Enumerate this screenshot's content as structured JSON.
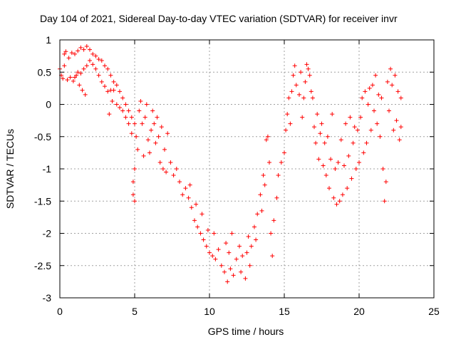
{
  "chart_data": {
    "type": "scatter",
    "title": "Day 104 of 2021, Sidereal Day-to-day VTEC variation (SDTVAR) for receiver invr",
    "xlabel": "GPS time / hours",
    "ylabel": "SDTVAR / TECUs",
    "xlim": [
      0,
      25
    ],
    "ylim": [
      -3,
      1
    ],
    "xticks": [
      "0",
      "5",
      "10",
      "15",
      "20",
      "25"
    ],
    "yticks": [
      "1",
      "0.5",
      "0",
      "-0.5",
      "-1",
      "-1.5",
      "-2",
      "-2.5",
      "-3"
    ],
    "xtick_values": [
      0,
      5,
      10,
      15,
      20,
      25
    ],
    "ytick_values": [
      1,
      0.5,
      0,
      -0.5,
      -1,
      -1.5,
      -2,
      -2.5,
      -3
    ],
    "grid": true,
    "marker": "+",
    "color": "#ff0000",
    "series": [
      {
        "name": "SDTVAR",
        "points": [
          [
            0.0,
            0.55
          ],
          [
            0.1,
            0.45
          ],
          [
            0.2,
            0.4
          ],
          [
            0.3,
            0.6
          ],
          [
            0.3,
            0.78
          ],
          [
            0.4,
            0.82
          ],
          [
            0.5,
            0.38
          ],
          [
            0.6,
            0.72
          ],
          [
            0.7,
            0.42
          ],
          [
            0.8,
            0.8
          ],
          [
            0.9,
            0.36
          ],
          [
            1.0,
            0.78
          ],
          [
            1.0,
            0.42
          ],
          [
            1.1,
            0.45
          ],
          [
            1.2,
            0.83
          ],
          [
            1.2,
            0.5
          ],
          [
            1.3,
            0.3
          ],
          [
            1.4,
            0.88
          ],
          [
            1.4,
            0.48
          ],
          [
            1.5,
            0.22
          ],
          [
            1.6,
            0.85
          ],
          [
            1.6,
            0.55
          ],
          [
            1.7,
            0.15
          ],
          [
            1.8,
            0.9
          ],
          [
            1.8,
            0.6
          ],
          [
            2.0,
            0.85
          ],
          [
            2.0,
            0.68
          ],
          [
            2.2,
            0.78
          ],
          [
            2.2,
            0.62
          ],
          [
            2.4,
            0.75
          ],
          [
            2.4,
            0.55
          ],
          [
            2.6,
            0.7
          ],
          [
            2.6,
            0.45
          ],
          [
            2.8,
            0.68
          ],
          [
            2.8,
            0.35
          ],
          [
            3.0,
            0.6
          ],
          [
            3.0,
            0.28
          ],
          [
            3.2,
            0.55
          ],
          [
            3.2,
            0.2
          ],
          [
            3.4,
            0.45
          ],
          [
            3.4,
            0.22
          ],
          [
            3.3,
            -0.15
          ],
          [
            3.5,
            0.05
          ],
          [
            3.6,
            0.35
          ],
          [
            3.6,
            0.22
          ],
          [
            3.8,
            0.3
          ],
          [
            3.8,
            0.0
          ],
          [
            4.0,
            0.2
          ],
          [
            4.0,
            -0.05
          ],
          [
            4.2,
            0.1
          ],
          [
            4.2,
            -0.1
          ],
          [
            4.4,
            0.0
          ],
          [
            4.4,
            -0.2
          ],
          [
            4.6,
            -0.1
          ],
          [
            4.6,
            -0.3
          ],
          [
            4.8,
            -0.2
          ],
          [
            4.8,
            -0.45
          ],
          [
            5.0,
            -0.3
          ],
          [
            5.0,
            -1.0
          ],
          [
            4.9,
            -1.4
          ],
          [
            5.0,
            -1.5
          ],
          [
            4.9,
            -1.2
          ],
          [
            5.1,
            -0.5
          ],
          [
            5.2,
            -0.7
          ],
          [
            5.3,
            -0.1
          ],
          [
            5.4,
            0.05
          ],
          [
            5.5,
            -0.3
          ],
          [
            5.6,
            -0.8
          ],
          [
            5.7,
            -0.2
          ],
          [
            5.8,
            0.0
          ],
          [
            5.9,
            -0.55
          ],
          [
            6.0,
            -0.75
          ],
          [
            6.1,
            -0.4
          ],
          [
            6.2,
            -0.1
          ],
          [
            6.3,
            -0.3
          ],
          [
            6.4,
            -0.6
          ],
          [
            6.5,
            -0.2
          ],
          [
            6.6,
            -0.5
          ],
          [
            6.7,
            -0.9
          ],
          [
            6.8,
            -0.35
          ],
          [
            6.9,
            -1.0
          ],
          [
            7.0,
            -0.7
          ],
          [
            7.1,
            -1.05
          ],
          [
            7.2,
            -0.45
          ],
          [
            7.4,
            -0.9
          ],
          [
            7.6,
            -1.1
          ],
          [
            7.8,
            -1.0
          ],
          [
            8.0,
            -1.2
          ],
          [
            8.2,
            -1.4
          ],
          [
            8.4,
            -1.3
          ],
          [
            8.6,
            -1.45
          ],
          [
            8.8,
            -1.6
          ],
          [
            8.7,
            -1.25
          ],
          [
            9.0,
            -1.8
          ],
          [
            9.1,
            -1.55
          ],
          [
            9.2,
            -1.9
          ],
          [
            9.4,
            -2.0
          ],
          [
            9.5,
            -1.7
          ],
          [
            9.6,
            -2.1
          ],
          [
            9.8,
            -2.2
          ],
          [
            9.9,
            -1.95
          ],
          [
            10.0,
            -2.3
          ],
          [
            10.2,
            -2.35
          ],
          [
            10.3,
            -2.0
          ],
          [
            10.4,
            -2.4
          ],
          [
            10.6,
            -2.25
          ],
          [
            10.8,
            -2.5
          ],
          [
            11.0,
            -2.6
          ],
          [
            11.1,
            -2.15
          ],
          [
            11.2,
            -2.75
          ],
          [
            11.3,
            -2.3
          ],
          [
            11.4,
            -2.55
          ],
          [
            11.5,
            -2.0
          ],
          [
            11.6,
            -2.65
          ],
          [
            11.8,
            -2.4
          ],
          [
            12.0,
            -2.2
          ],
          [
            12.1,
            -2.6
          ],
          [
            12.2,
            -2.35
          ],
          [
            12.4,
            -2.7
          ],
          [
            12.5,
            -2.3
          ],
          [
            12.6,
            -2.05
          ],
          [
            12.7,
            -2.5
          ],
          [
            12.8,
            -2.2
          ],
          [
            13.0,
            -1.9
          ],
          [
            13.1,
            -2.1
          ],
          [
            13.2,
            -1.7
          ],
          [
            13.4,
            -1.4
          ],
          [
            13.5,
            -1.65
          ],
          [
            13.6,
            -1.1
          ],
          [
            13.7,
            -1.25
          ],
          [
            13.8,
            -0.55
          ],
          [
            13.9,
            -0.5
          ],
          [
            14.0,
            -0.9
          ],
          [
            14.1,
            -2.0
          ],
          [
            14.2,
            -2.35
          ],
          [
            14.3,
            -1.8
          ],
          [
            14.5,
            -1.45
          ],
          [
            14.6,
            -1.1
          ],
          [
            14.8,
            -0.9
          ],
          [
            15.0,
            -0.75
          ],
          [
            15.1,
            -0.4
          ],
          [
            15.2,
            -0.15
          ],
          [
            15.3,
            0.1
          ],
          [
            15.4,
            -0.3
          ],
          [
            15.5,
            0.2
          ],
          [
            15.6,
            0.45
          ],
          [
            15.7,
            0.6
          ],
          [
            15.8,
            0.3
          ],
          [
            16.0,
            0.15
          ],
          [
            16.1,
            0.5
          ],
          [
            16.2,
            -0.2
          ],
          [
            16.3,
            0.1
          ],
          [
            16.4,
            0.35
          ],
          [
            16.5,
            0.62
          ],
          [
            16.6,
            0.55
          ],
          [
            16.7,
            0.45
          ],
          [
            16.8,
            0.2
          ],
          [
            16.9,
            0.1
          ],
          [
            17.0,
            -0.35
          ],
          [
            17.1,
            -0.6
          ],
          [
            17.2,
            -0.15
          ],
          [
            17.3,
            -0.85
          ],
          [
            17.4,
            -0.45
          ],
          [
            17.5,
            -0.3
          ],
          [
            17.6,
            -0.95
          ],
          [
            17.7,
            -0.6
          ],
          [
            17.8,
            -1.1
          ],
          [
            17.9,
            -0.5
          ],
          [
            18.0,
            -1.3
          ],
          [
            18.1,
            -0.85
          ],
          [
            18.2,
            -0.15
          ],
          [
            18.3,
            -1.45
          ],
          [
            18.4,
            -1.0
          ],
          [
            18.5,
            -1.55
          ],
          [
            18.6,
            -0.9
          ],
          [
            18.7,
            -1.5
          ],
          [
            18.8,
            -0.55
          ],
          [
            18.9,
            -1.4
          ],
          [
            19.0,
            -0.95
          ],
          [
            19.1,
            -0.3
          ],
          [
            19.2,
            -1.3
          ],
          [
            19.3,
            -0.8
          ],
          [
            19.4,
            -0.2
          ],
          [
            19.5,
            -1.15
          ],
          [
            19.6,
            -0.6
          ],
          [
            19.7,
            -0.35
          ],
          [
            19.8,
            -1.0
          ],
          [
            19.9,
            -0.4
          ],
          [
            20.0,
            -0.9
          ],
          [
            20.1,
            -0.2
          ],
          [
            20.2,
            0.1
          ],
          [
            20.3,
            -0.75
          ],
          [
            20.4,
            0.2
          ],
          [
            20.5,
            -0.6
          ],
          [
            20.6,
            0.0
          ],
          [
            20.7,
            0.25
          ],
          [
            20.8,
            -0.4
          ],
          [
            20.9,
            0.3
          ],
          [
            21.0,
            -0.1
          ],
          [
            21.1,
            0.45
          ],
          [
            21.2,
            -0.3
          ],
          [
            21.3,
            0.15
          ],
          [
            21.4,
            -0.5
          ],
          [
            21.5,
            0.1
          ],
          [
            21.6,
            -1.0
          ],
          [
            21.7,
            -1.5
          ],
          [
            21.8,
            -1.2
          ],
          [
            21.9,
            0.35
          ],
          [
            22.0,
            -0.1
          ],
          [
            22.1,
            0.55
          ],
          [
            22.2,
            0.3
          ],
          [
            22.3,
            -0.4
          ],
          [
            22.4,
            0.45
          ],
          [
            22.5,
            -0.25
          ],
          [
            22.6,
            0.2
          ],
          [
            22.7,
            -0.55
          ],
          [
            22.8,
            0.1
          ],
          [
            22.8,
            -0.35
          ]
        ]
      }
    ]
  }
}
